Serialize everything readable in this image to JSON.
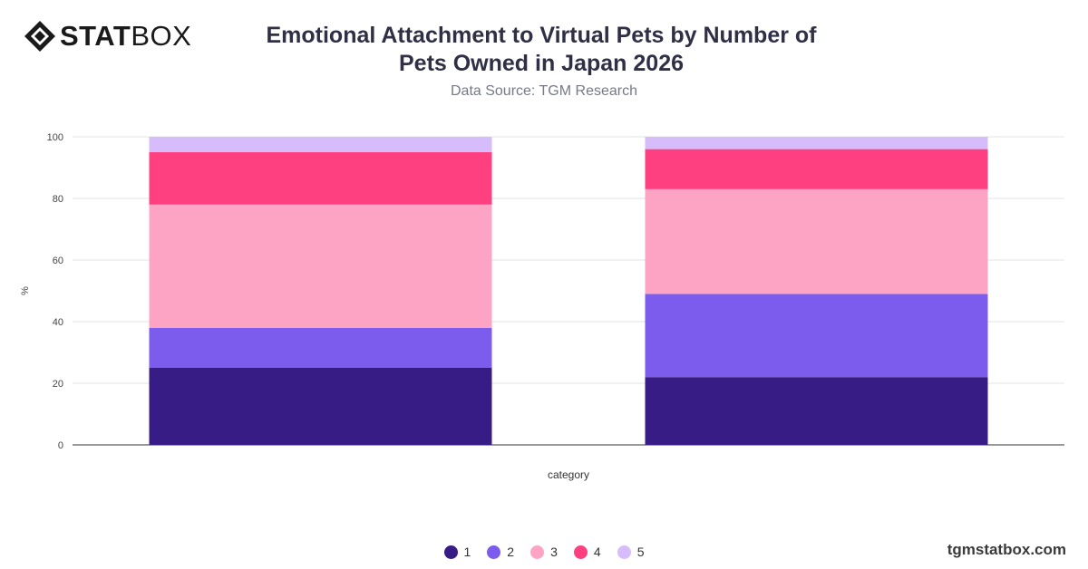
{
  "brand": {
    "logo_bold": "STAT",
    "logo_light": "BOX",
    "logo_icon": "diamond-grid-icon",
    "site": "tgmstatbox.com"
  },
  "header": {
    "title": "Emotional Attachment to Virtual Pets by Number of Pets Owned in Japan 2026",
    "subtitle": "Data Source: TGM Research"
  },
  "chart_data": {
    "type": "bar",
    "stacked": true,
    "title": "Emotional Attachment to Virtual Pets by Number of Pets Owned in Japan 2026",
    "subtitle": "Data Source: TGM Research",
    "xlabel": "category",
    "ylabel": "%",
    "ylim": [
      0,
      100
    ],
    "yticks": [
      0,
      20,
      40,
      60,
      80,
      100
    ],
    "grid": true,
    "legend_position": "bottom",
    "categories": [
      "",
      ""
    ],
    "series": [
      {
        "name": "1",
        "color": "#371c85",
        "values": [
          25,
          22
        ]
      },
      {
        "name": "2",
        "color": "#7c5cec",
        "values": [
          13,
          27
        ]
      },
      {
        "name": "3",
        "color": "#fda4c4",
        "values": [
          40,
          34
        ]
      },
      {
        "name": "4",
        "color": "#fe3f80",
        "values": [
          17,
          13
        ]
      },
      {
        "name": "5",
        "color": "#d6bcfa",
        "values": [
          5,
          4
        ]
      }
    ]
  }
}
